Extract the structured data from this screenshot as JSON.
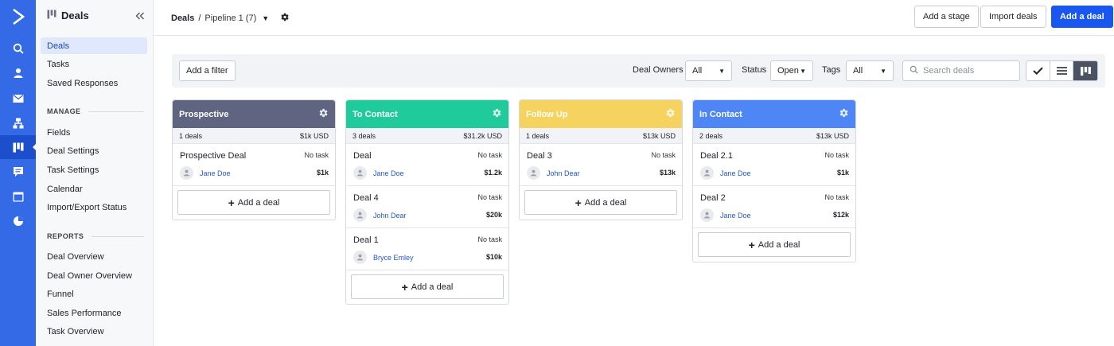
{
  "app": {
    "title": "Deals",
    "accent": "#356ae6",
    "primary_button": "#1a56f0"
  },
  "rail": {
    "icons": [
      "logo-chevron-icon",
      "search-icon",
      "contacts-icon",
      "email-icon",
      "automation-icon",
      "deals-icon",
      "messages-icon",
      "website-icon",
      "reports-icon"
    ]
  },
  "sidebar": {
    "title": "Deals",
    "items": [
      {
        "label": "Deals",
        "active": true
      },
      {
        "label": "Tasks"
      },
      {
        "label": "Saved Responses"
      }
    ],
    "manage_label": "MANAGE",
    "manage_items": [
      {
        "label": "Fields"
      },
      {
        "label": "Deal Settings"
      },
      {
        "label": "Task Settings"
      },
      {
        "label": "Calendar"
      },
      {
        "label": "Import/Export Status"
      }
    ],
    "reports_label": "REPORTS",
    "reports_items": [
      {
        "label": "Deal Overview"
      },
      {
        "label": "Deal Owner Overview"
      },
      {
        "label": "Funnel"
      },
      {
        "label": "Sales Performance"
      },
      {
        "label": "Task Overview"
      }
    ]
  },
  "header": {
    "breadcrumb_root": "Deals",
    "separator": "/",
    "pipeline": "Pipeline 1 (7)",
    "add_stage": "Add a stage",
    "import_deals": "Import deals",
    "add_deal": "Add a deal"
  },
  "filters": {
    "add_filter": "Add a filter",
    "owners_label": "Deal Owners",
    "owners_value": "All",
    "status_label": "Status",
    "status_value": "Open",
    "tags_label": "Tags",
    "tags_value": "All",
    "search_placeholder": "Search deals"
  },
  "add_deal_label": "Add a deal",
  "stages": [
    {
      "name": "Prospective",
      "color": "#5f6580",
      "count": "1 deals",
      "total": "$1k USD",
      "deals": [
        {
          "name": "Prospective Deal",
          "task": "No task",
          "owner": "Jane Doe",
          "value": "$1k"
        }
      ]
    },
    {
      "name": "To Contact",
      "color": "#1fca9b",
      "count": "3 deals",
      "total": "$31.2k USD",
      "deals": [
        {
          "name": "Deal",
          "task": "No task",
          "owner": "Jane Doe",
          "value": "$1.2k"
        },
        {
          "name": "Deal 4",
          "task": "No task",
          "owner": "John Dear",
          "value": "$20k"
        },
        {
          "name": "Deal 1",
          "task": "No task",
          "owner": "Bryce Emley",
          "value": "$10k"
        }
      ]
    },
    {
      "name": "Follow Up",
      "color": "#f6d25e",
      "count": "1 deals",
      "total": "$13k USD",
      "deals": [
        {
          "name": "Deal 3",
          "task": "No task",
          "owner": "John Dear",
          "value": "$13k"
        }
      ]
    },
    {
      "name": "In Contact",
      "color": "#4f86f5",
      "count": "2 deals",
      "total": "$13k USD",
      "deals": [
        {
          "name": "Deal 2.1",
          "task": "No task",
          "owner": "Jane Doe",
          "value": "$1k"
        },
        {
          "name": "Deal 2",
          "task": "No task",
          "owner": "Jane Doe",
          "value": "$12k"
        }
      ]
    }
  ]
}
